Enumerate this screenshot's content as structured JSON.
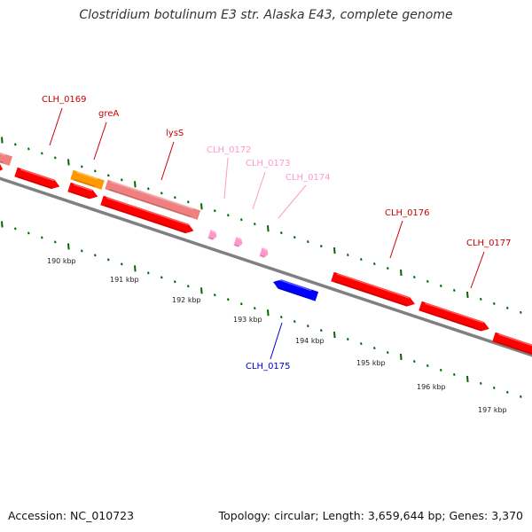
{
  "title": "Clostridium botulinum E3 str. Alaska E43, complete genome",
  "footer": {
    "accession": "Accession: NC_010723",
    "summary": "Topology: circular; Length: 3,659,644 bp; Genes: 3,370"
  },
  "colors": {
    "gene_red": "#ff0000",
    "gene_pink": "#f08080",
    "gene_orange": "#ff9900",
    "gene_blue": "#0000ff",
    "rna_pink": "#ff99cc",
    "backbone": "#808080",
    "ticks": "#006600"
  },
  "scale_labels": [
    {
      "label": "190 kbp"
    },
    {
      "label": "191 kbp"
    },
    {
      "label": "192 kbp"
    },
    {
      "label": "193 kbp"
    },
    {
      "label": "194 kbp"
    },
    {
      "label": "195 kbp"
    },
    {
      "label": "196 kbp"
    },
    {
      "label": "197 kbp"
    }
  ],
  "gene_labels": [
    {
      "name": "CLH_0169",
      "color": "#cc0000"
    },
    {
      "name": "greA",
      "color": "#cc0000"
    },
    {
      "name": "lysS",
      "color": "#cc0000"
    },
    {
      "name": "CLH_0172",
      "color": "#ff99cc"
    },
    {
      "name": "CLH_0173",
      "color": "#ff99cc"
    },
    {
      "name": "CLH_0174",
      "color": "#ff99cc"
    },
    {
      "name": "CLH_0175",
      "color": "#0000cc"
    },
    {
      "name": "CLH_0176",
      "color": "#cc0000"
    },
    {
      "name": "CLH_0177",
      "color": "#cc0000"
    }
  ]
}
